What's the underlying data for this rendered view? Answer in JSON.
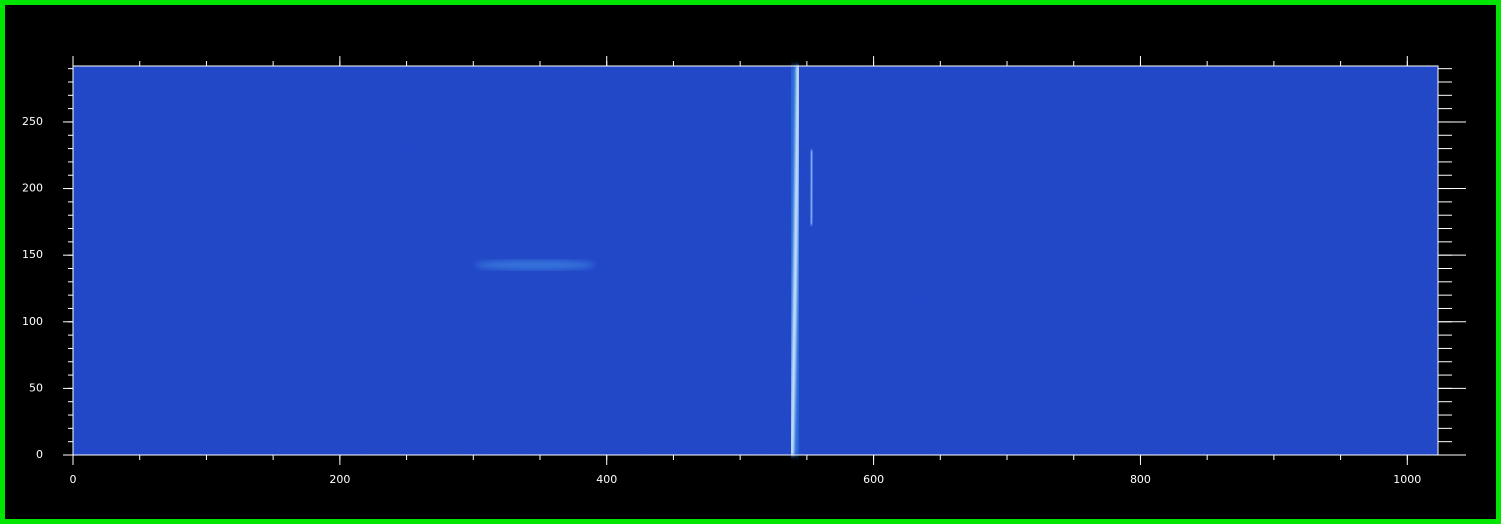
{
  "chart_data": {
    "type": "image",
    "xlim": [
      0,
      1023
    ],
    "ylim": [
      0,
      292
    ],
    "xticks": [
      0,
      200,
      400,
      600,
      800,
      1000
    ],
    "yticks": [
      0,
      50,
      100,
      150,
      200,
      250
    ],
    "xminor": 50,
    "yminor": 10,
    "color": "#0a1f8c",
    "axis_color": "#ffffff"
  }
}
